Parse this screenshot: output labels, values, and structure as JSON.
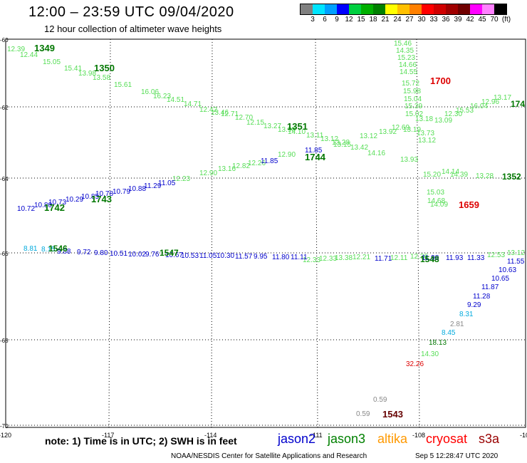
{
  "header": {
    "title": "12:00 – 23:59 UTC 09/04/2020",
    "subtitle": "12 hour collection of altimeter wave heights"
  },
  "colorbar": {
    "colors": [
      "#808080",
      "#00e5ff",
      "#00a0ff",
      "#0000ff",
      "#00d040",
      "#00b000",
      "#008000",
      "#ffff00",
      "#ffc000",
      "#ff8000",
      "#ff0000",
      "#d00000",
      "#a00000",
      "#700000",
      "#ff00ff",
      "#ff80ff",
      "#000000"
    ],
    "labels": [
      "3",
      "6",
      "9",
      "12",
      "15",
      "18",
      "21",
      "24",
      "27",
      "30",
      "33",
      "36",
      "39",
      "42",
      "45",
      "70",
      "(ft)"
    ]
  },
  "axes": {
    "lat_ticks": [
      "-60",
      "-62",
      "-64",
      "-66",
      "-68",
      "-70"
    ],
    "lon_ticks": [
      "-120",
      "-117",
      "-114",
      "-111",
      "-108",
      "-10"
    ]
  },
  "map_labels": {
    "green_track_1": [
      "12.39",
      "12.44",
      "15.05",
      "15.41",
      "13.98",
      "13.58",
      "15.61",
      "16.06",
      "16.23",
      "14.51",
      "14.71",
      "12.42",
      "13.46",
      "12.71",
      "12.70",
      "12.15",
      "13.27",
      "13.98",
      "14.10",
      "13.11",
      "13.12",
      "13.28",
      "13.42",
      "14.16",
      "13.93"
    ],
    "green_track_2": [
      "12.23",
      "12.90",
      "13.16",
      "12.82",
      "12.26",
      "12.90",
      "13.15",
      "13.12",
      "13.92",
      "12.69",
      "13.19",
      "13.09",
      "12.30",
      "15.53",
      "16.04",
      "12.96",
      "13.17"
    ],
    "green_track_3": [
      "15.46",
      "14.35",
      "15.23",
      "14.66",
      "14.55",
      "15.72",
      "15.98",
      "15.04",
      "15.39",
      "15.02",
      "13.18",
      "13.73",
      "13.12",
      "15.20",
      "14.14",
      "14.39",
      "13.28",
      "15.03",
      "14.68",
      "14.09"
    ],
    "green_track_4": [
      "12.33",
      "12.33",
      "13.38",
      "12.21",
      "12.11",
      "12.36",
      "12.53",
      "13.12"
    ],
    "blue_track_1": [
      "10.72",
      "10.80",
      "10.73",
      "10.29",
      "10.85",
      "10.78",
      "10.79",
      "10.88",
      "11.29",
      "11.05",
      "11.85",
      "11.85"
    ],
    "blue_track_2": [
      "9.88",
      "9.72",
      "9.80",
      "10.51",
      "10.02",
      "9.76",
      "10.67",
      "10.53",
      "11.05",
      "10.30",
      "11.57",
      "9.95",
      "11.80",
      "11.11",
      "11.71",
      "11.98",
      "11.93",
      "11.33"
    ],
    "blue_track_3": [
      "11.55",
      "10.63",
      "10.65",
      "11.87",
      "11.28",
      "9.29"
    ],
    "cyan_labels": [
      "8.81",
      "8.15",
      "8.31",
      "8.45"
    ],
    "gray_labels": [
      "2.81",
      "0.59",
      "0.59"
    ],
    "dark_green_labels": [
      "1349",
      "1350",
      "1742",
      "1743",
      "1351",
      "1744",
      "1352",
      "174",
      "1546",
      "1547",
      "1548",
      "18.13"
    ],
    "light_green_extra": [
      "14.30"
    ],
    "red_labels": [
      "1700",
      "1659",
      "32.26"
    ],
    "dark_red_labels": [
      "1543"
    ]
  },
  "footer": {
    "note": "note:  1) Time is in UTC;  2) SWH is in feet",
    "sat_jason2": "jason2",
    "sat_jason3": "jason3",
    "sat_altika": "altika",
    "sat_cryosat": "cryosat",
    "sat_s3a": "s3a",
    "credit": "NOAA/NESDIS Center for Satellite Applications and Research",
    "timestamp": "Sep  5 12:28:47 UTC 2020",
    "colors": {
      "jason2": "#0000cc",
      "jason3": "#008000",
      "altika": "#ff9900",
      "cryosat": "#ff0000",
      "s3a": "#990000"
    }
  }
}
